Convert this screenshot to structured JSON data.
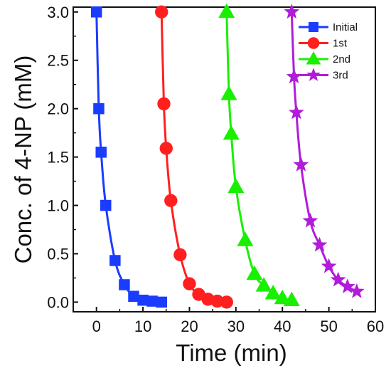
{
  "chart_data": {
    "type": "line",
    "xlabel": "Time (min)",
    "ylabel": "Conc. of 4-NP (mM)",
    "xlim": [
      -5,
      60
    ],
    "ylim": [
      -0.1,
      3.05
    ],
    "xticks": [
      0,
      10,
      20,
      30,
      40,
      50,
      60
    ],
    "yticks": [
      0.0,
      0.5,
      1.0,
      1.5,
      2.0,
      2.5,
      3.0
    ],
    "xtick_labels": [
      "0",
      "10",
      "20",
      "30",
      "40",
      "50",
      "60"
    ],
    "ytick_labels": [
      "0.0",
      "0.5",
      "1.0",
      "1.5",
      "2.0",
      "2.5",
      "3.0"
    ],
    "grid": false,
    "legend_position": "top-right",
    "series": [
      {
        "name": "Initial",
        "color": "#1a3cff",
        "marker": "square",
        "x": [
          0,
          0.5,
          1,
          2,
          4,
          6,
          8,
          10,
          12,
          14
        ],
        "y": [
          3.0,
          2.0,
          1.55,
          1.0,
          0.43,
          0.18,
          0.06,
          0.02,
          0.01,
          0.0
        ]
      },
      {
        "name": "1st",
        "color": "#ff1f1f",
        "marker": "circle",
        "x": [
          14,
          14.5,
          15,
          16,
          18,
          20,
          22,
          24,
          26,
          28
        ],
        "y": [
          3.0,
          2.05,
          1.59,
          1.05,
          0.49,
          0.19,
          0.08,
          0.03,
          0.01,
          0.0
        ]
      },
      {
        "name": "2nd",
        "color": "#18f000",
        "marker": "triangle",
        "x": [
          28,
          28.5,
          29,
          30,
          32,
          34,
          36,
          38,
          40,
          42
        ],
        "y": [
          3.0,
          2.15,
          1.74,
          1.19,
          0.64,
          0.29,
          0.17,
          0.09,
          0.04,
          0.02
        ]
      },
      {
        "name": "3rd",
        "color": "#b01cd9",
        "marker": "star",
        "x": [
          42,
          42.5,
          43,
          44,
          46,
          48,
          50,
          52,
          54,
          56
        ],
        "y": [
          3.0,
          2.33,
          1.96,
          1.42,
          0.84,
          0.59,
          0.37,
          0.23,
          0.16,
          0.11
        ]
      }
    ]
  }
}
